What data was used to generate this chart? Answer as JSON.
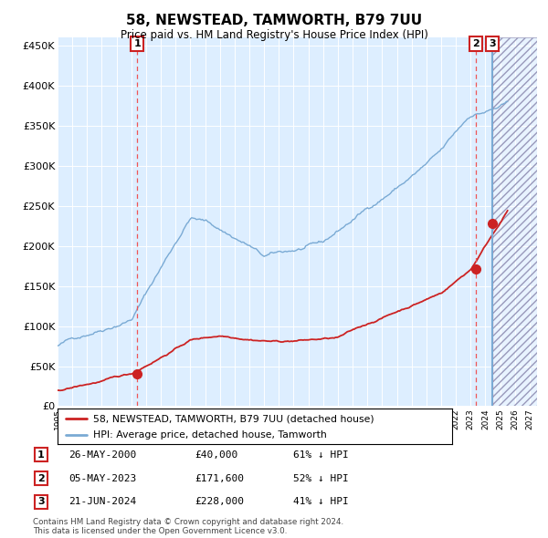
{
  "title": "58, NEWSTEAD, TAMWORTH, B79 7UU",
  "subtitle": "Price paid vs. HM Land Registry's House Price Index (HPI)",
  "ylim": [
    0,
    460000
  ],
  "yticks": [
    0,
    50000,
    100000,
    150000,
    200000,
    250000,
    300000,
    350000,
    400000,
    450000
  ],
  "ytick_labels": [
    "£0",
    "£50K",
    "£100K",
    "£150K",
    "£200K",
    "£250K",
    "£300K",
    "£350K",
    "£400K",
    "£450K"
  ],
  "xlim_start": 1995.0,
  "xlim_end": 2027.5,
  "xtick_years": [
    1995,
    1996,
    1997,
    1998,
    1999,
    2000,
    2001,
    2002,
    2003,
    2004,
    2005,
    2006,
    2007,
    2008,
    2009,
    2010,
    2011,
    2012,
    2013,
    2014,
    2015,
    2016,
    2017,
    2018,
    2019,
    2020,
    2021,
    2022,
    2023,
    2024,
    2025,
    2026,
    2027
  ],
  "hpi_color": "#7aaad4",
  "price_color": "#cc2222",
  "sale_dot_color": "#cc2222",
  "vline_color": "#ee5555",
  "plot_bg_color": "#ddeeff",
  "sale1_x": 2000.4,
  "sale1_y": 40000,
  "sale1_label": "1",
  "sale2_x": 2023.35,
  "sale2_y": 171600,
  "sale2_label": "2",
  "sale3_x": 2024.47,
  "sale3_y": 228000,
  "sale3_label": "3",
  "future_vline_x": 2024.47,
  "table_rows": [
    {
      "num": "1",
      "date": "26-MAY-2000",
      "price": "£40,000",
      "hpi": "61% ↓ HPI"
    },
    {
      "num": "2",
      "date": "05-MAY-2023",
      "price": "£171,600",
      "hpi": "52% ↓ HPI"
    },
    {
      "num": "3",
      "date": "21-JUN-2024",
      "price": "£228,000",
      "hpi": "41% ↓ HPI"
    }
  ],
  "footer": "Contains HM Land Registry data © Crown copyright and database right 2024.\nThis data is licensed under the Open Government Licence v3.0.",
  "legend_line1": "58, NEWSTEAD, TAMWORTH, B79 7UU (detached house)",
  "legend_line2": "HPI: Average price, detached house, Tamworth"
}
